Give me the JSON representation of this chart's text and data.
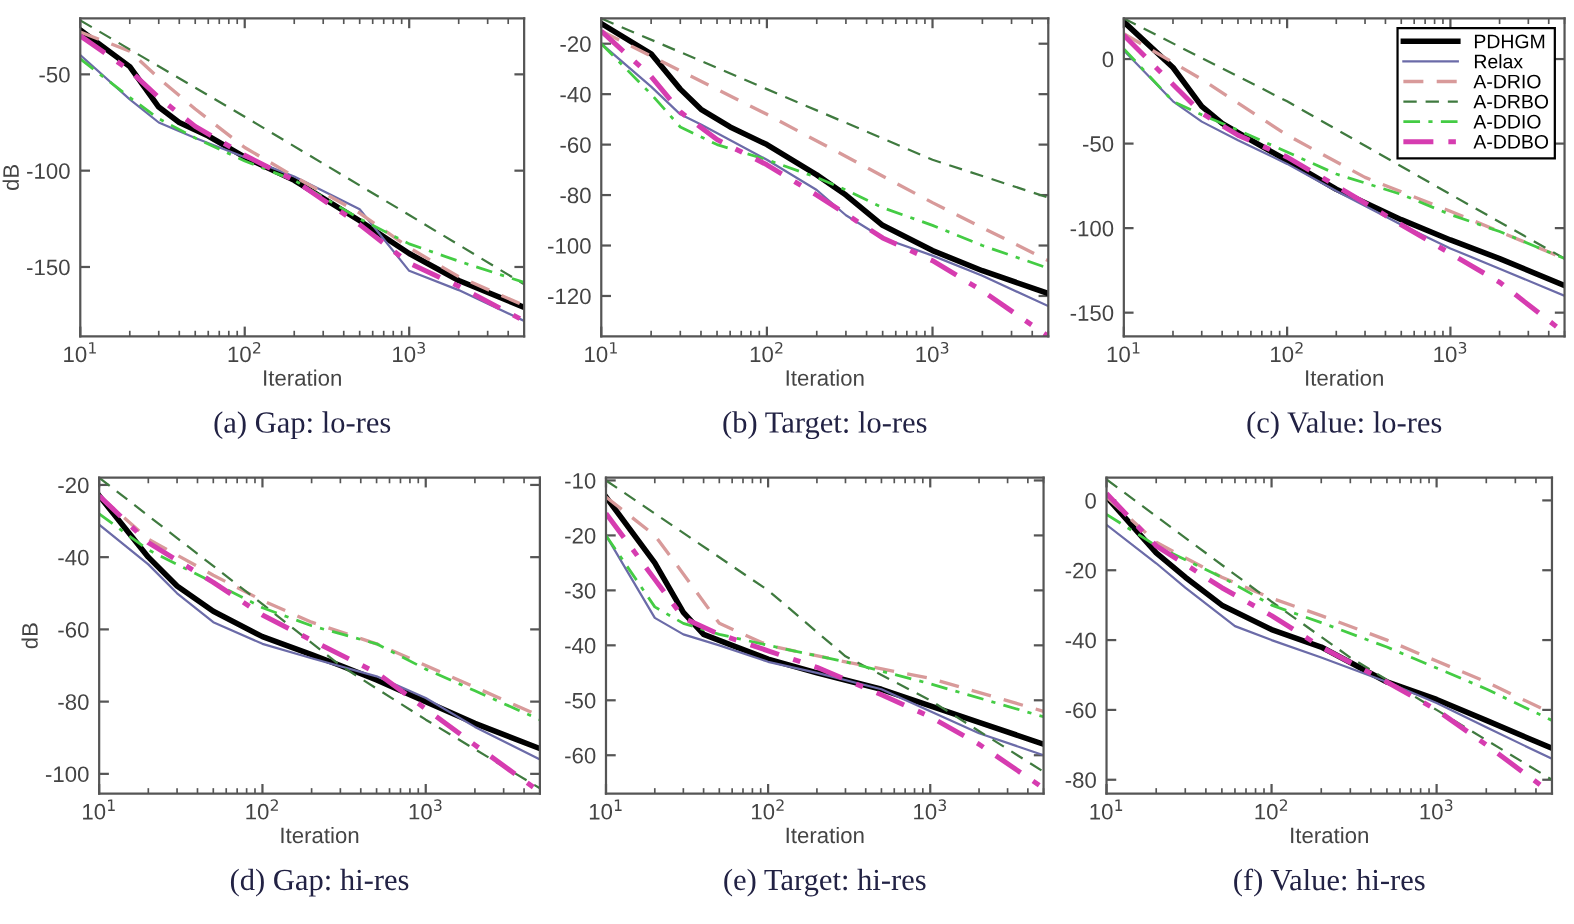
{
  "chart_data": [
    {
      "type": "line",
      "title": "(a) Gap: lo-res",
      "xlabel": "Iteration",
      "ylabel": "dB",
      "log": "x",
      "grid": false,
      "xlim": [
        10,
        5000
      ],
      "xticks": [
        {
          "value": 10,
          "label": "10$^{1}$"
        },
        {
          "value": 100,
          "label": "10$^{2}$"
        },
        {
          "value": 1000,
          "label": "10$^{3}$"
        }
      ],
      "ylim": [
        -186,
        -21
      ],
      "yticks": [
        -150,
        -100,
        -50
      ],
      "series": [
        {
          "color": "#000000",
          "line_style": "solid",
          "x": [
            10,
            20,
            30,
            40,
            60,
            100,
            200,
            500,
            1000,
            2000,
            5000
          ],
          "values": [
            -27,
            -46,
            -67,
            -75,
            -82,
            -93,
            -105,
            -126,
            -143,
            -157,
            -171
          ]
        },
        {
          "color": "#6b6ba8",
          "line_style": "solid",
          "x": [
            10,
            20,
            30,
            50,
            100,
            200,
            500,
            1000,
            2000,
            5000
          ],
          "values": [
            -40,
            -63,
            -75,
            -83,
            -93,
            -103,
            -120,
            -152,
            -162,
            -178
          ]
        },
        {
          "color": "#d89a9a",
          "line_style": "dashed",
          "x": [
            10,
            20,
            30,
            50,
            100,
            200,
            500,
            1000,
            2000,
            5000
          ],
          "values": [
            -28,
            -38,
            -52,
            -68,
            -88,
            -103,
            -122,
            -140,
            -155,
            -170
          ]
        },
        {
          "color": "#3f7a3f",
          "line_style": "dashed",
          "x": [
            10,
            100,
            1000,
            5000
          ],
          "values": [
            -22,
            -72,
            -123,
            -159
          ]
        },
        {
          "color": "#44cc44",
          "line_style": "dashdot",
          "x": [
            10,
            20,
            30,
            50,
            100,
            200,
            500,
            1000,
            2000,
            5000
          ],
          "values": [
            -42,
            -62,
            -73,
            -83,
            -95,
            -105,
            -125,
            -138,
            -147,
            -158
          ]
        },
        {
          "color": "#d63cb0",
          "line_style": "dashdot",
          "x": [
            10,
            20,
            30,
            50,
            100,
            200,
            500,
            1000,
            2000,
            5000
          ],
          "values": [
            -30,
            -48,
            -62,
            -77,
            -92,
            -105,
            -128,
            -148,
            -160,
            -178
          ]
        }
      ]
    },
    {
      "type": "line",
      "title": "(b) Target: lo-res",
      "xlabel": "Iteration",
      "log": "x",
      "grid": false,
      "xlim": [
        10,
        5000
      ],
      "xticks": [
        {
          "value": 10,
          "label": "10$^{1}$"
        },
        {
          "value": 100,
          "label": "10$^{2}$"
        },
        {
          "value": 1000,
          "label": "10$^{3}$"
        }
      ],
      "ylim": [
        -136,
        -10
      ],
      "yticks": [
        -120,
        -100,
        -80,
        -60,
        -40,
        -20
      ],
      "series": [
        {
          "color": "#000000",
          "line_style": "solid",
          "x": [
            10,
            20,
            30,
            40,
            60,
            100,
            200,
            300,
            500,
            1000,
            2000,
            5000
          ],
          "values": [
            -12,
            -24,
            -38,
            -46,
            -53,
            -60,
            -72,
            -80,
            -92,
            -102,
            -110,
            -119
          ]
        },
        {
          "color": "#6b6ba8",
          "line_style": "solid",
          "x": [
            10,
            20,
            30,
            40,
            100,
            200,
            300,
            500,
            1000,
            2000,
            5000
          ],
          "values": [
            -20,
            -37,
            -48,
            -52,
            -66,
            -78,
            -88,
            -97,
            -104,
            -112,
            -124
          ]
        },
        {
          "color": "#d89a9a",
          "line_style": "dashed",
          "x": [
            10,
            100,
            1000,
            5000
          ],
          "values": [
            -15,
            -48,
            -83,
            -106
          ]
        },
        {
          "color": "#3f7a3f",
          "line_style": "dashed",
          "x": [
            10,
            100,
            1000,
            5000
          ],
          "values": [
            -10,
            -38,
            -66,
            -81
          ]
        },
        {
          "color": "#44cc44",
          "line_style": "dashdot",
          "x": [
            10,
            20,
            30,
            50,
            100,
            200,
            300,
            500,
            1000,
            2000,
            5000
          ],
          "values": [
            -20,
            -40,
            -53,
            -60,
            -66,
            -73,
            -78,
            -85,
            -92,
            -100,
            -109
          ]
        },
        {
          "color": "#d63cb0",
          "line_style": "dashdot",
          "x": [
            10,
            20,
            30,
            50,
            100,
            200,
            500,
            1000,
            2000,
            5000
          ],
          "values": [
            -15,
            -33,
            -47,
            -58,
            -68,
            -80,
            -97,
            -106,
            -118,
            -136
          ]
        }
      ]
    },
    {
      "type": "line",
      "title": "(c) Value: lo-res",
      "xlabel": "Iteration",
      "log": "x",
      "grid": false,
      "legend": "top right",
      "xlim": [
        10,
        5000
      ],
      "xticks": [
        {
          "value": 10,
          "label": "10$^{1}$"
        },
        {
          "value": 100,
          "label": "10$^{2}$"
        },
        {
          "value": 1000,
          "label": "10$^{3}$"
        }
      ],
      "ylim": [
        -164,
        24
      ],
      "yticks": [
        -150,
        -100,
        -50,
        0
      ],
      "series": [
        {
          "name": "PDHGM",
          "color": "#000000",
          "line_style": "solid",
          "x": [
            10,
            20,
            30,
            40,
            60,
            100,
            200,
            500,
            1000,
            2000,
            5000
          ],
          "values": [
            22,
            -5,
            -28,
            -38,
            -48,
            -60,
            -77,
            -95,
            -107,
            -118,
            -134
          ]
        },
        {
          "name": "Relax",
          "color": "#6b6ba8",
          "line_style": "solid",
          "x": [
            10,
            20,
            30,
            50,
            100,
            200,
            500,
            1000,
            2000,
            5000
          ],
          "values": [
            5,
            -25,
            -37,
            -48,
            -62,
            -78,
            -98,
            -112,
            -124,
            -140
          ]
        },
        {
          "name": "A-DRIO",
          "color": "#d89a9a",
          "line_style": "dashed",
          "x": [
            10,
            30,
            100,
            300,
            1000,
            5000
          ],
          "values": [
            15,
            -12,
            -45,
            -70,
            -90,
            -118
          ]
        },
        {
          "name": "A-DRBO",
          "color": "#3f7a3f",
          "line_style": "dashed",
          "x": [
            10,
            100,
            1000,
            5000
          ],
          "values": [
            24,
            -25,
            -80,
            -118
          ]
        },
        {
          "name": "A-DDIO",
          "color": "#44cc44",
          "line_style": "dashdot",
          "x": [
            10,
            20,
            30,
            50,
            100,
            200,
            500,
            1000,
            2000,
            5000
          ],
          "values": [
            6,
            -25,
            -33,
            -42,
            -55,
            -68,
            -80,
            -92,
            -102,
            -118
          ]
        },
        {
          "name": "A-DDBO",
          "color": "#d63cb0",
          "line_style": "dashdot",
          "x": [
            10,
            20,
            30,
            50,
            100,
            200,
            500,
            1000,
            2000,
            5000
          ],
          "values": [
            14,
            -15,
            -32,
            -45,
            -58,
            -75,
            -98,
            -115,
            -132,
            -162
          ]
        }
      ]
    },
    {
      "type": "line",
      "title": "(d) Gap: hi-res",
      "xlabel": "Iteration",
      "ylabel": "dB",
      "log": "x",
      "grid": false,
      "xlim": [
        10,
        5000
      ],
      "xticks": [
        {
          "value": 10,
          "label": "10$^{1}$"
        },
        {
          "value": 100,
          "label": "10$^{2}$"
        },
        {
          "value": 1000,
          "label": "10$^{3}$"
        }
      ],
      "ylim": [
        -105.5,
        -18
      ],
      "yticks": [
        -100,
        -80,
        -60,
        -40,
        -20
      ],
      "series": [
        {
          "color": "#000000",
          "line_style": "solid",
          "x": [
            10,
            20,
            30,
            50,
            100,
            200,
            300,
            500,
            1000,
            2000,
            5000
          ],
          "values": [
            -23,
            -40,
            -48,
            -55,
            -62,
            -67,
            -70,
            -74,
            -80,
            -86,
            -93
          ]
        },
        {
          "color": "#6b6ba8",
          "line_style": "solid",
          "x": [
            10,
            20,
            30,
            50,
            100,
            200,
            500,
            1000,
            2000,
            5000
          ],
          "values": [
            -31,
            -42,
            -50,
            -58,
            -64,
            -68,
            -73,
            -79,
            -87,
            -96
          ]
        },
        {
          "color": "#d89a9a",
          "line_style": "dashed",
          "x": [
            10,
            20,
            50,
            100,
            200,
            500,
            1000,
            2000,
            5000
          ],
          "values": [
            -23,
            -35,
            -45,
            -52,
            -58,
            -64,
            -70,
            -76,
            -84
          ]
        },
        {
          "color": "#3f7a3f",
          "line_style": "dashed",
          "x": [
            10,
            100,
            300,
            1000,
            5000
          ],
          "values": [
            -18,
            -53,
            -70,
            -85,
            -104
          ]
        },
        {
          "color": "#44cc44",
          "line_style": "dashdot",
          "x": [
            10,
            20,
            50,
            100,
            200,
            500,
            1000,
            2000,
            5000
          ],
          "values": [
            -28,
            -38,
            -47,
            -54,
            -59,
            -64,
            -71,
            -77,
            -85
          ]
        },
        {
          "color": "#d63cb0",
          "line_style": "dashdot",
          "x": [
            10,
            20,
            50,
            100,
            200,
            500,
            1000,
            2000,
            5000
          ],
          "values": [
            -23,
            -36,
            -47,
            -56,
            -63,
            -72,
            -82,
            -92,
            -105
          ]
        }
      ]
    },
    {
      "type": "line",
      "title": "(e) Target: hi-res",
      "xlabel": "Iteration",
      "log": "x",
      "grid": false,
      "xlim": [
        10,
        5000
      ],
      "xticks": [
        {
          "value": 10,
          "label": "10$^{1}$"
        },
        {
          "value": 100,
          "label": "10$^{2}$"
        },
        {
          "value": 1000,
          "label": "10$^{3}$"
        }
      ],
      "ylim": [
        -67,
        -9.5
      ],
      "yticks": [
        -60,
        -50,
        -40,
        -30,
        -20,
        -10
      ],
      "series": [
        {
          "color": "#000000",
          "line_style": "solid",
          "x": [
            10,
            20,
            30,
            40,
            60,
            100,
            200,
            500,
            1000,
            2000,
            5000
          ],
          "values": [
            -13,
            -25,
            -34,
            -38,
            -40,
            -42.5,
            -45,
            -48,
            -51,
            -54,
            -58
          ]
        },
        {
          "color": "#6b6ba8",
          "line_style": "solid",
          "x": [
            10,
            20,
            30,
            50,
            100,
            200,
            500,
            1000,
            2000,
            5000
          ],
          "values": [
            -20,
            -35,
            -38,
            -40,
            -43,
            -45,
            -48,
            -52,
            -56,
            -60
          ]
        },
        {
          "color": "#d89a9a",
          "line_style": "dashed",
          "x": [
            10,
            20,
            30,
            50,
            100,
            300,
            1000,
            5000
          ],
          "values": [
            -13,
            -20,
            -27,
            -36,
            -40,
            -43,
            -46,
            -52
          ]
        },
        {
          "color": "#3f7a3f",
          "line_style": "dashed",
          "x": [
            10,
            100,
            300,
            1000,
            5000
          ],
          "values": [
            -10,
            -30,
            -42,
            -50,
            -63
          ]
        },
        {
          "color": "#44cc44",
          "line_style": "dashdot",
          "x": [
            10,
            20,
            30,
            50,
            100,
            300,
            1000,
            5000
          ],
          "values": [
            -20,
            -33,
            -36,
            -38,
            -40,
            -43,
            -47,
            -53
          ]
        },
        {
          "color": "#d63cb0",
          "line_style": "dashdot",
          "x": [
            10,
            20,
            30,
            50,
            100,
            200,
            500,
            1000,
            2000,
            5000
          ],
          "values": [
            -16,
            -28,
            -35,
            -38,
            -41,
            -44,
            -49,
            -53,
            -58,
            -66
          ]
        }
      ]
    },
    {
      "type": "line",
      "title": "(f) Value: hi-res",
      "xlabel": "Iteration",
      "log": "x",
      "grid": false,
      "xlim": [
        10,
        5000
      ],
      "xticks": [
        {
          "value": 10,
          "label": "10$^{1}$"
        },
        {
          "value": 100,
          "label": "10$^{2}$"
        },
        {
          "value": 1000,
          "label": "10$^{3}$"
        }
      ],
      "ylim": [
        -84,
        6.5
      ],
      "yticks": [
        -80,
        -60,
        -40,
        -20,
        0
      ],
      "series": [
        {
          "color": "#000000",
          "line_style": "solid",
          "x": [
            10,
            20,
            30,
            50,
            100,
            200,
            500,
            1000,
            2000,
            5000
          ],
          "values": [
            1,
            -15,
            -22,
            -30,
            -37,
            -42,
            -52,
            -57,
            -63,
            -71
          ]
        },
        {
          "color": "#6b6ba8",
          "line_style": "solid",
          "x": [
            10,
            20,
            30,
            60,
            100,
            200,
            500,
            1000,
            2000,
            5000
          ],
          "values": [
            -7,
            -18,
            -25,
            -36,
            -40,
            -45,
            -52,
            -58,
            -65,
            -74
          ]
        },
        {
          "color": "#d89a9a",
          "line_style": "dashed",
          "x": [
            10,
            20,
            50,
            100,
            200,
            500,
            1000,
            2000,
            5000
          ],
          "values": [
            1,
            -12,
            -22,
            -28,
            -33,
            -40,
            -46,
            -52,
            -61
          ]
        },
        {
          "color": "#3f7a3f",
          "line_style": "dashed",
          "x": [
            10,
            100,
            300,
            1000,
            5000
          ],
          "values": [
            6,
            -29,
            -45,
            -60,
            -80
          ]
        },
        {
          "color": "#44cc44",
          "line_style": "dashdot",
          "x": [
            10,
            20,
            50,
            100,
            200,
            500,
            1000,
            2000,
            5000
          ],
          "values": [
            -4,
            -13,
            -22,
            -30,
            -35,
            -42,
            -48,
            -54,
            -63
          ]
        },
        {
          "color": "#d63cb0",
          "line_style": "dashdot",
          "x": [
            10,
            20,
            50,
            100,
            200,
            500,
            1000,
            2000,
            5000
          ],
          "values": [
            2,
            -13,
            -25,
            -33,
            -42,
            -52,
            -60,
            -70,
            -84
          ]
        }
      ]
    }
  ]
}
